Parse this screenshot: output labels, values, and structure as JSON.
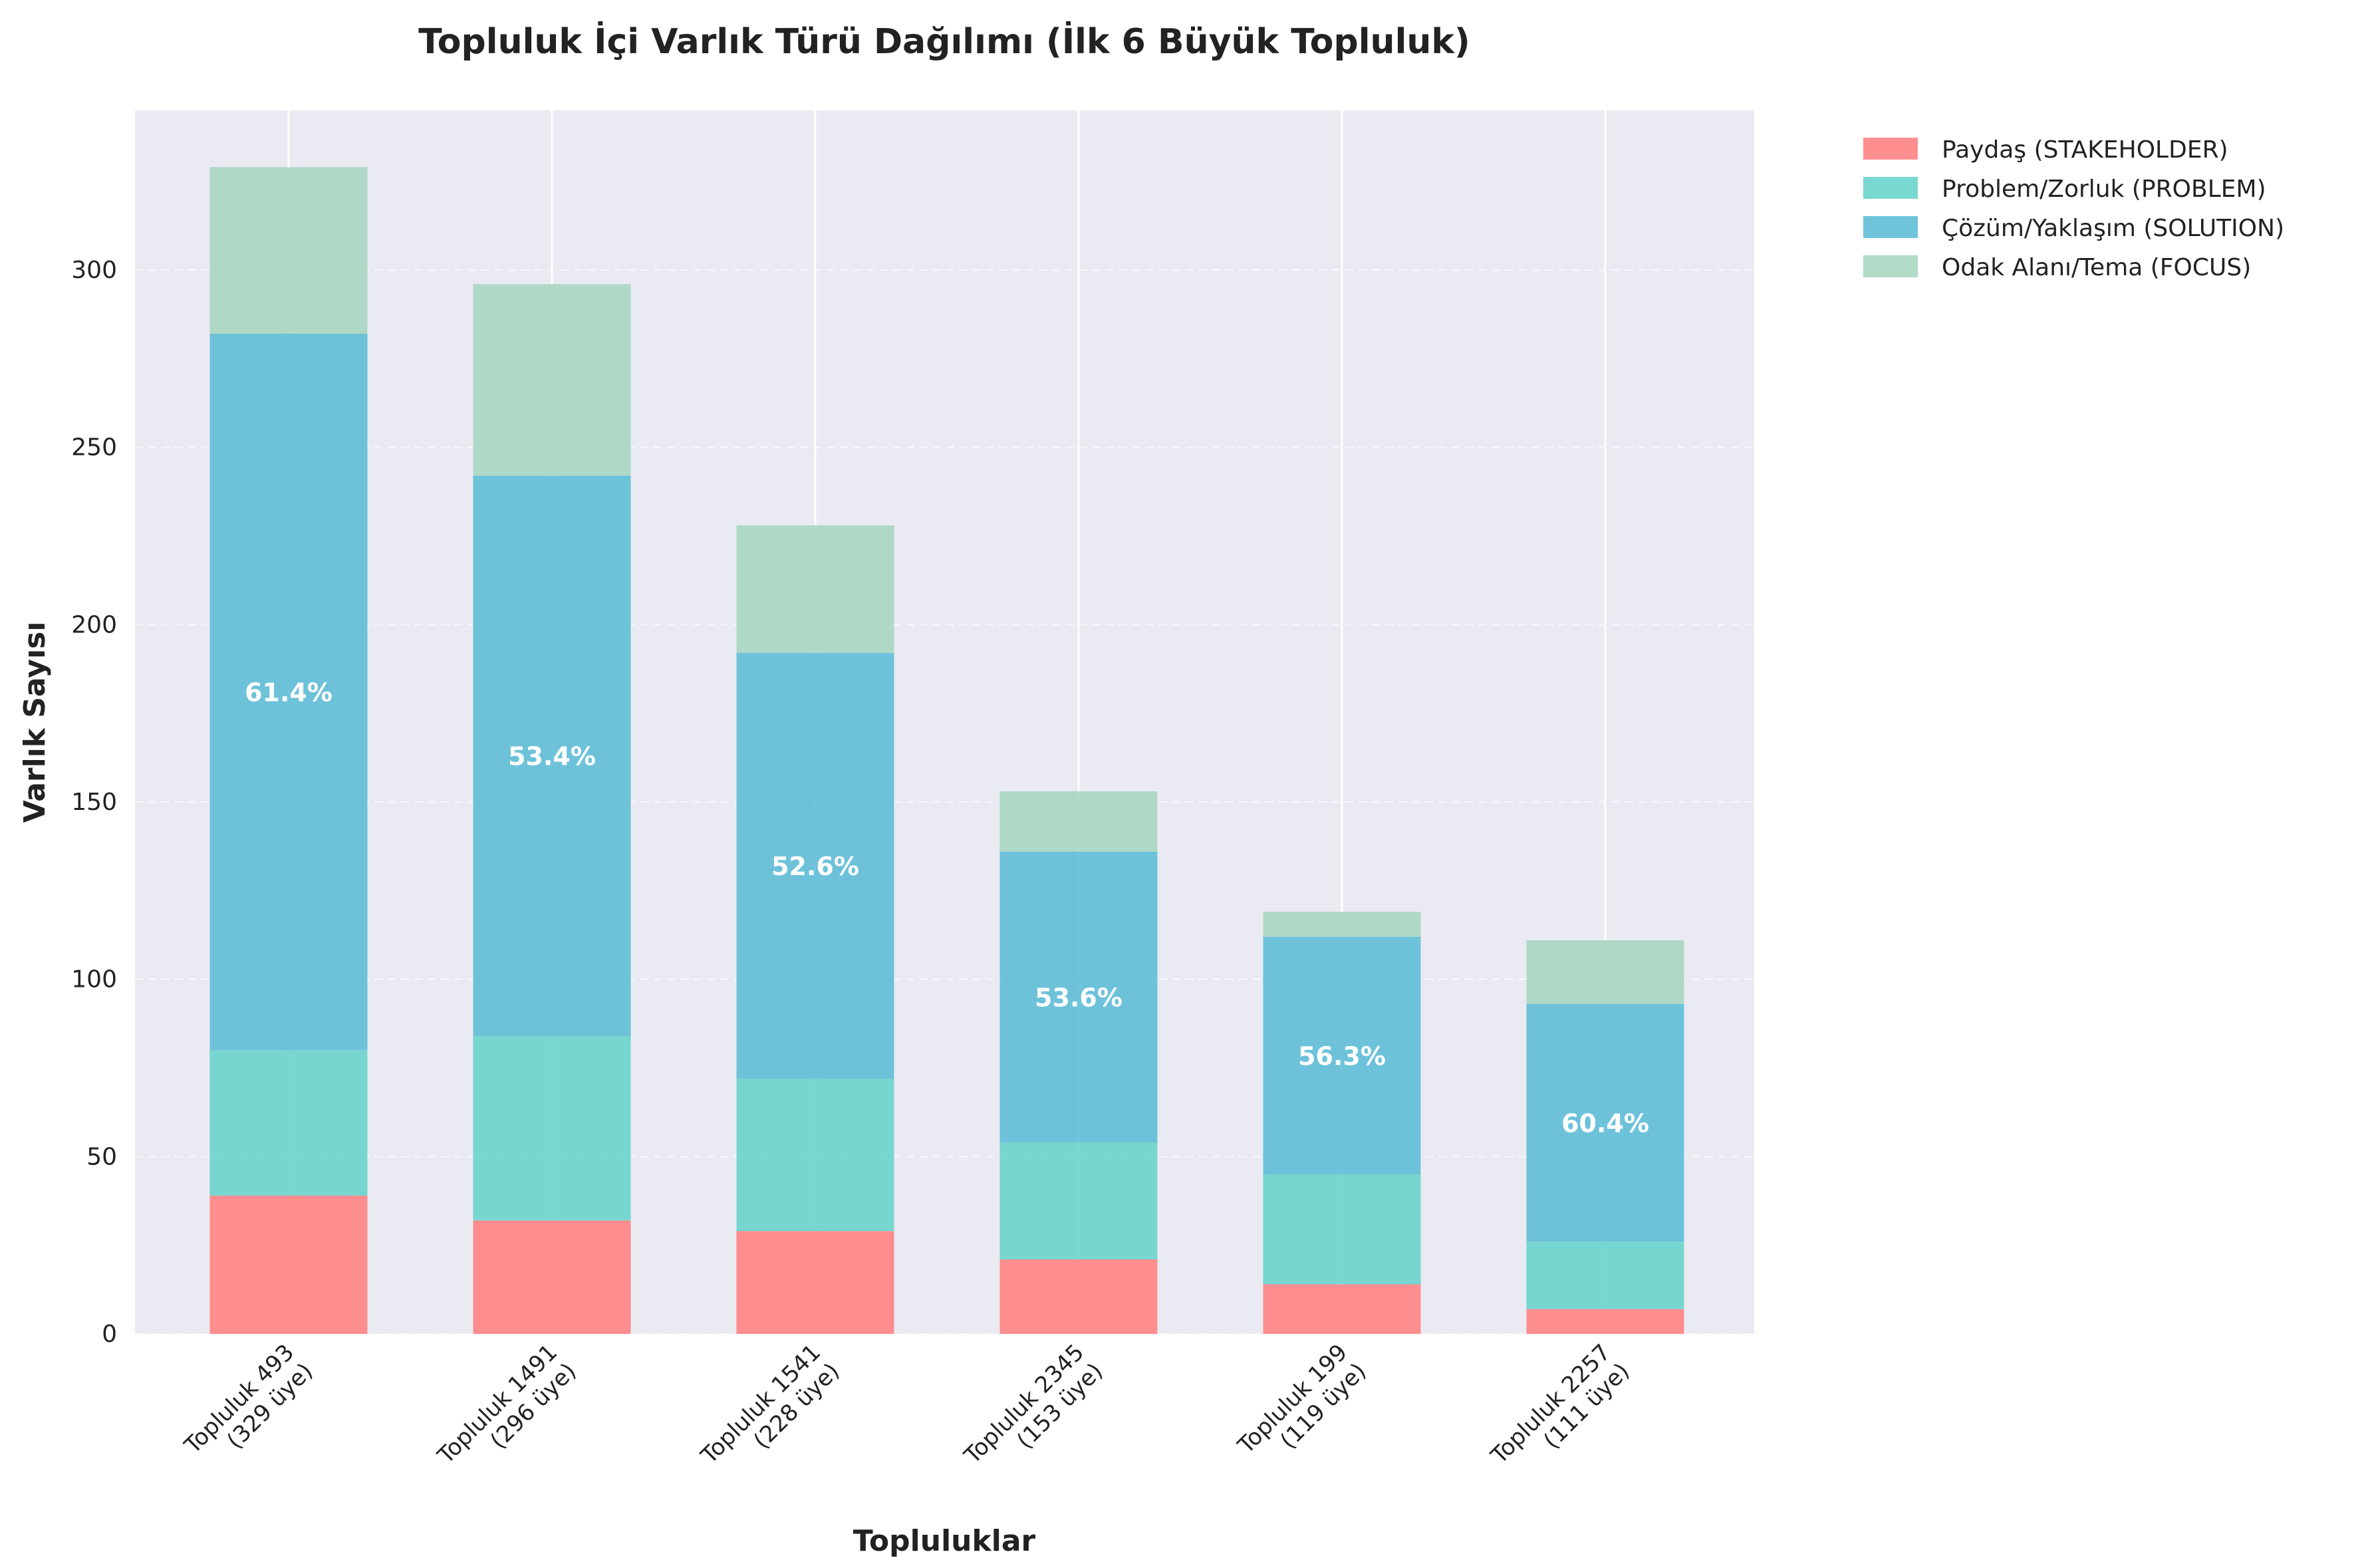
{
  "chart_data": {
    "type": "bar",
    "stacked": true,
    "title": "Topluluk İçi Varlık Türü Dağılımı (İlk 6 Büyük Topluluk)",
    "xlabel": "Topluluklar",
    "ylabel": "Varlık Sayısı",
    "ylim": [
      0,
      345
    ],
    "yticks": [
      0,
      50,
      100,
      150,
      200,
      250,
      300
    ],
    "grid": true,
    "legend_position": "outside-right",
    "categories": [
      [
        "Topluluk 493",
        "(329 üye)"
      ],
      [
        "Topluluk 1491",
        "(296 üye)"
      ],
      [
        "Topluluk 1541",
        "(228 üye)"
      ],
      [
        "Topluluk 2345",
        "(153 üye)"
      ],
      [
        "Topluluk 199",
        "(119 üye)"
      ],
      [
        "Topluluk 2257",
        "(111 üye)"
      ]
    ],
    "series": [
      {
        "name": "Paydaş (STAKEHOLDER)",
        "color": "#FF7F7F",
        "values": [
          39,
          32,
          29,
          21,
          14,
          7
        ]
      },
      {
        "name": "Problem/Zorluk (PROBLEM)",
        "color": "#66D3C9",
        "values": [
          41,
          52,
          43,
          33,
          31,
          19
        ]
      },
      {
        "name": "Çözüm/Yaklaşım (SOLUTION)",
        "color": "#5BBCD6",
        "values": [
          202,
          158,
          120,
          82,
          67,
          67
        ]
      },
      {
        "name": "Odak Alanı/Tema (FOCUS)",
        "color": "#A6D5BF",
        "values": [
          47,
          54,
          36,
          17,
          7,
          18
        ]
      }
    ],
    "annotations": [
      "61.4%",
      "53.4%",
      "52.6%",
      "53.6%",
      "56.3%",
      "60.4%"
    ]
  }
}
